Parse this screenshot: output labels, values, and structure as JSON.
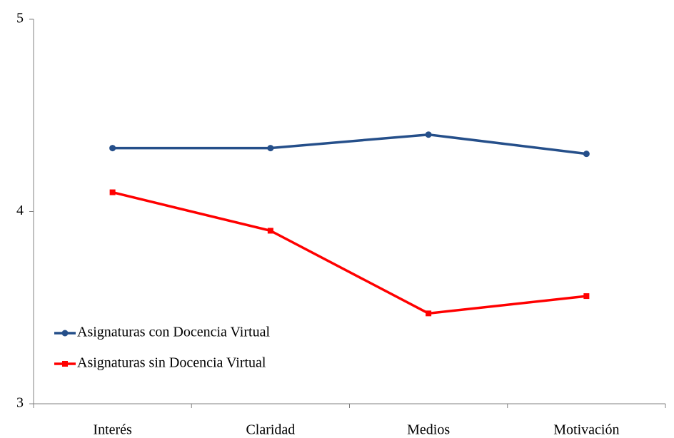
{
  "chart_data": {
    "type": "line",
    "categories": [
      "Interés",
      "Claridad",
      "Medios",
      "Motivación"
    ],
    "series": [
      {
        "name": "Asignaturas con Docencia Virtual",
        "color": "#254f8a",
        "marker": "circle",
        "values": [
          4.33,
          4.33,
          4.4,
          4.3
        ]
      },
      {
        "name": "Asignaturas sin Docencia Virtual",
        "color": "#ff0000",
        "marker": "square",
        "values": [
          4.1,
          3.9,
          3.47,
          3.56
        ]
      }
    ],
    "ylim": [
      3,
      5
    ],
    "yticks": [
      3,
      4,
      5
    ],
    "grid": false,
    "legend": "lower left"
  }
}
